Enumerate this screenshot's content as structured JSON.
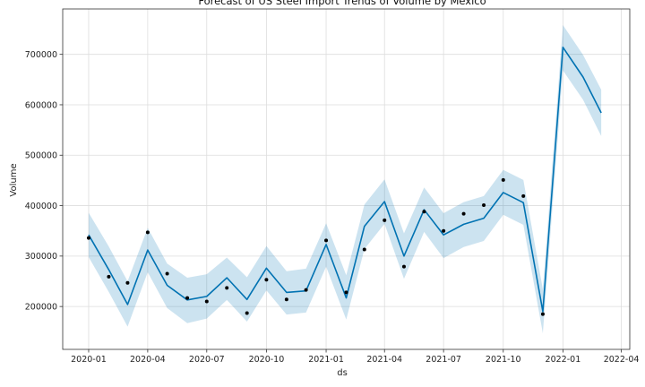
{
  "chart_data": {
    "type": "line",
    "title": "Forecast of US Steel Import Trends of Volume by Mexico",
    "xlabel": "ds",
    "ylabel": "Volume",
    "xlim": [
      "2019-11-22",
      "2022-04-14"
    ],
    "ylim": [
      115000,
      790000
    ],
    "grid": true,
    "x_ticks": [
      "2020-01",
      "2020-04",
      "2020-07",
      "2020-10",
      "2021-01",
      "2021-04",
      "2021-07",
      "2021-10",
      "2022-01",
      "2022-04"
    ],
    "y_ticks": [
      200000,
      300000,
      400000,
      500000,
      600000,
      700000
    ],
    "colors": {
      "forecast_line": "#0072b2",
      "interval_fill": "#0072b2",
      "observed_points": "#000000",
      "grid": "#dddddd"
    },
    "series": [
      {
        "kind": "observed",
        "points": [
          {
            "x": "2020-01-01",
            "y": 336000
          },
          {
            "x": "2020-02-01",
            "y": 259000
          },
          {
            "x": "2020-03-01",
            "y": 247000
          },
          {
            "x": "2020-04-01",
            "y": 347000
          },
          {
            "x": "2020-05-01",
            "y": 265000
          },
          {
            "x": "2020-06-01",
            "y": 217000
          },
          {
            "x": "2020-07-01",
            "y": 210000
          },
          {
            "x": "2020-08-01",
            "y": 237000
          },
          {
            "x": "2020-09-01",
            "y": 187000
          },
          {
            "x": "2020-10-01",
            "y": 253000
          },
          {
            "x": "2020-11-01",
            "y": 214000
          },
          {
            "x": "2020-12-01",
            "y": 233000
          },
          {
            "x": "2021-01-01",
            "y": 331000
          },
          {
            "x": "2021-02-01",
            "y": 228000
          },
          {
            "x": "2021-03-01",
            "y": 313000
          },
          {
            "x": "2021-04-01",
            "y": 371000
          },
          {
            "x": "2021-05-01",
            "y": 279000
          },
          {
            "x": "2021-06-01",
            "y": 388000
          },
          {
            "x": "2021-07-01",
            "y": 350000
          },
          {
            "x": "2021-08-01",
            "y": 384000
          },
          {
            "x": "2021-09-01",
            "y": 401000
          },
          {
            "x": "2021-10-01",
            "y": 451000
          },
          {
            "x": "2021-11-01",
            "y": 419000
          },
          {
            "x": "2021-12-01",
            "y": 185000
          }
        ]
      },
      {
        "kind": "forecast",
        "points": [
          {
            "x": "2020-01-01",
            "y": 342000,
            "lower": 298000,
            "upper": 386000
          },
          {
            "x": "2020-02-01",
            "y": 273000,
            "lower": 229000,
            "upper": 319000
          },
          {
            "x": "2020-03-01",
            "y": 204000,
            "lower": 160000,
            "upper": 250000
          },
          {
            "x": "2020-04-01",
            "y": 312000,
            "lower": 268000,
            "upper": 356000
          },
          {
            "x": "2020-05-01",
            "y": 242000,
            "lower": 197000,
            "upper": 285000
          },
          {
            "x": "2020-06-01",
            "y": 213000,
            "lower": 167000,
            "upper": 257000
          },
          {
            "x": "2020-07-01",
            "y": 220000,
            "lower": 176000,
            "upper": 264000
          },
          {
            "x": "2020-08-01",
            "y": 257000,
            "lower": 213000,
            "upper": 297000
          },
          {
            "x": "2020-09-01",
            "y": 214000,
            "lower": 170000,
            "upper": 258000
          },
          {
            "x": "2020-10-01",
            "y": 276000,
            "lower": 232000,
            "upper": 320000
          },
          {
            "x": "2020-11-01",
            "y": 228000,
            "lower": 184000,
            "upper": 270000
          },
          {
            "x": "2020-12-01",
            "y": 231000,
            "lower": 188000,
            "upper": 275000
          },
          {
            "x": "2021-01-01",
            "y": 323000,
            "lower": 279000,
            "upper": 365000
          },
          {
            "x": "2021-02-01",
            "y": 217000,
            "lower": 174000,
            "upper": 262000
          },
          {
            "x": "2021-03-01",
            "y": 359000,
            "lower": 314000,
            "upper": 402000
          },
          {
            "x": "2021-04-01",
            "y": 408000,
            "lower": 364000,
            "upper": 452000
          },
          {
            "x": "2021-05-01",
            "y": 300000,
            "lower": 255000,
            "upper": 345000
          },
          {
            "x": "2021-06-01",
            "y": 392000,
            "lower": 348000,
            "upper": 436000
          },
          {
            "x": "2021-07-01",
            "y": 342000,
            "lower": 296000,
            "upper": 385000
          },
          {
            "x": "2021-08-01",
            "y": 363000,
            "lower": 318000,
            "upper": 407000
          },
          {
            "x": "2021-09-01",
            "y": 375000,
            "lower": 330000,
            "upper": 419000
          },
          {
            "x": "2021-10-01",
            "y": 426000,
            "lower": 382000,
            "upper": 471000
          },
          {
            "x": "2021-11-01",
            "y": 406000,
            "lower": 362000,
            "upper": 451000
          },
          {
            "x": "2021-12-01",
            "y": 190000,
            "lower": 147000,
            "upper": 234000
          },
          {
            "x": "2022-01-01",
            "y": 714000,
            "lower": 668000,
            "upper": 758000
          },
          {
            "x": "2022-02-01",
            "y": 655000,
            "lower": 610000,
            "upper": 699000
          },
          {
            "x": "2022-03-01",
            "y": 584000,
            "lower": 538000,
            "upper": 630000
          }
        ]
      }
    ]
  }
}
